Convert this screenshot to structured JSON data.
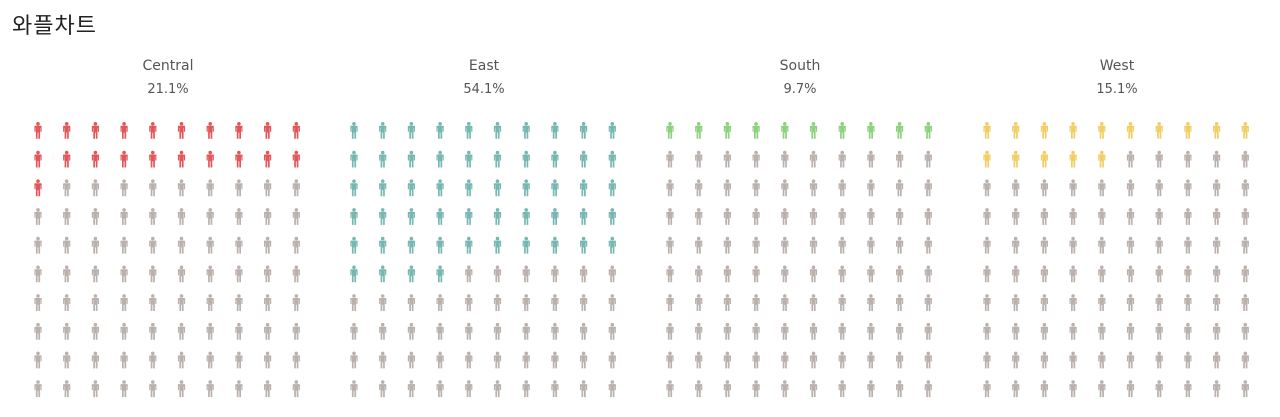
{
  "page": {
    "title": "와플차트"
  },
  "chart_data": [
    {
      "type": "waffle",
      "category": "Central",
      "value_label": "21.1%",
      "value": 21.1,
      "filled_icons": 21,
      "total_icons": 100,
      "grid": [
        10,
        10
      ],
      "color": "#e15759"
    },
    {
      "type": "waffle",
      "category": "East",
      "value_label": "54.1%",
      "value": 54.1,
      "filled_icons": 54,
      "total_icons": 100,
      "grid": [
        10,
        10
      ],
      "color": "#76b7b2"
    },
    {
      "type": "waffle",
      "category": "South",
      "value_label": "9.7%",
      "value": 9.7,
      "filled_icons": 10,
      "total_icons": 100,
      "grid": [
        10,
        10
      ],
      "color": "#8cd17d"
    },
    {
      "type": "waffle",
      "category": "West",
      "value_label": "15.1%",
      "value": 15.1,
      "filled_icons": 15,
      "total_icons": 100,
      "grid": [
        10,
        10
      ],
      "color": "#f1ce63"
    }
  ],
  "colors": {
    "empty_icon": "#bab0ac"
  },
  "icon": "person-icon"
}
